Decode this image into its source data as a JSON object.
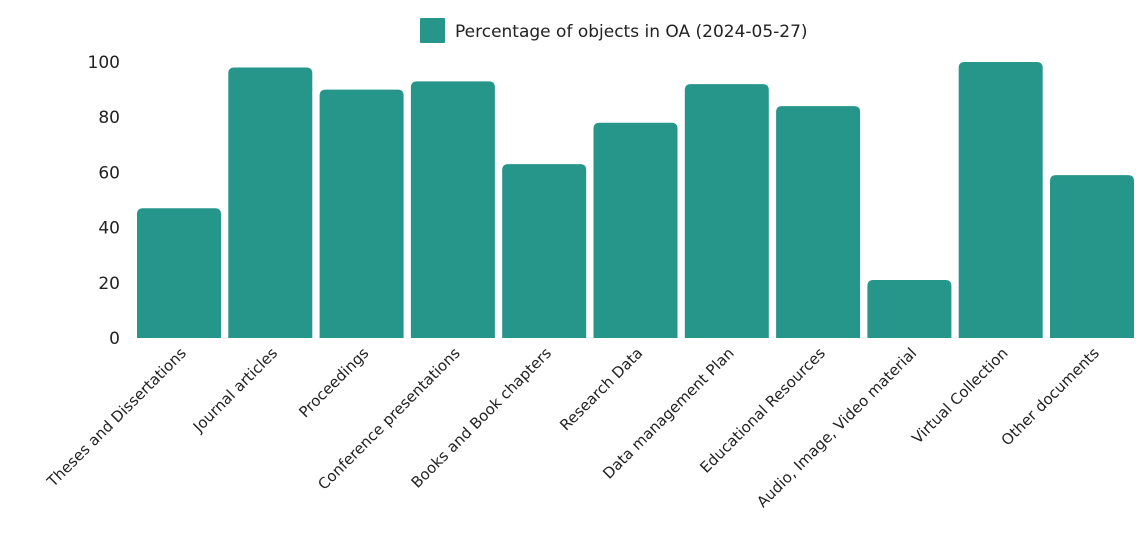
{
  "chart_data": {
    "type": "bar",
    "categories": [
      "Theses and Dissertations",
      "Journal articles",
      "Proceedings",
      "Conference presentations",
      "Books and Book chapters",
      "Research Data",
      "Data management Plan",
      "Educational Resources",
      "Audio, Image, Video material",
      "Virtual Collection",
      "Other documents"
    ],
    "series": [
      {
        "name": "Percentage of objects in OA (2024-05-27)",
        "values": [
          47,
          98,
          90,
          93,
          63,
          78,
          92,
          84,
          21,
          100,
          59
        ],
        "color": "#26958a"
      }
    ],
    "ylim": [
      0,
      100
    ],
    "yticks": [
      "0",
      "20",
      "40",
      "60",
      "80",
      "100"
    ],
    "title": "",
    "xlabel": "",
    "ylabel": "",
    "grid": false,
    "legend_position": "top-center"
  }
}
